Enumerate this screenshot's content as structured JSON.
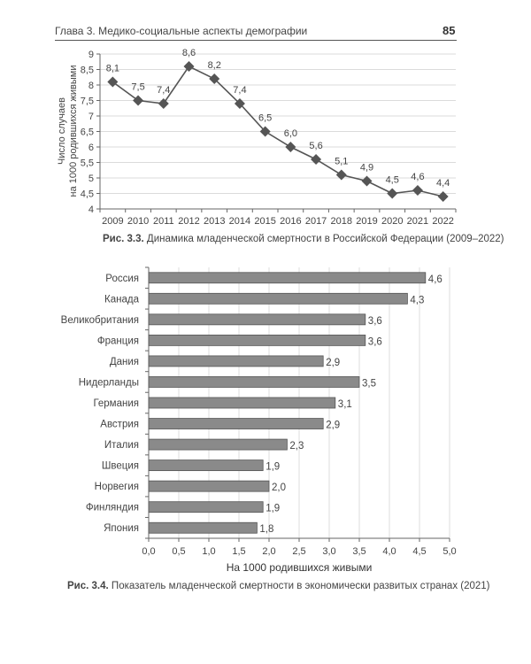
{
  "header": {
    "chapter": "Глава 3. Медико-социальные аспекты демографии",
    "page_number": "85"
  },
  "chart_data": [
    {
      "type": "line",
      "figure_label": "Рис. 3.3.",
      "title": "Динамика младенческой смертности в Российской Федерации (2009–2022)",
      "xlabel": "",
      "ylabel_line1": "Число случаев",
      "ylabel_line2": "на 1000 родившихся живыми",
      "x": [
        "2009",
        "2010",
        "2011",
        "2012",
        "2013",
        "2014",
        "2015",
        "2016",
        "2017",
        "2018",
        "2019",
        "2020",
        "2021",
        "2022"
      ],
      "values": [
        8.1,
        7.5,
        7.4,
        8.6,
        8.2,
        7.4,
        6.5,
        6.0,
        5.6,
        5.1,
        4.9,
        4.5,
        4.6,
        4.4
      ],
      "data_labels": [
        "8,1",
        "7,5",
        "7,4",
        "8,6",
        "8,2",
        "7,4",
        "6,5",
        "6,0",
        "5,6",
        "5,1",
        "4,9",
        "4,5",
        "4,6",
        "4,4"
      ],
      "ylim": [
        4,
        9
      ],
      "yticks": [
        "4",
        "4,5",
        "5",
        "5,5",
        "6",
        "6,5",
        "7",
        "7,5",
        "8",
        "8,5",
        "9"
      ],
      "grid": true,
      "marker": "diamond",
      "color": "#555555"
    },
    {
      "type": "bar",
      "orientation": "horizontal",
      "figure_label": "Рис. 3.4.",
      "title": "Показатель младенческой смертности в экономически развитых странах (2021)",
      "xlabel": "На 1000 родившихся живыми",
      "categories": [
        "Россия",
        "Канада",
        "Великобритания",
        "Франция",
        "Дания",
        "Нидерланды",
        "Германия",
        "Австрия",
        "Италия",
        "Швеция",
        "Норвегия",
        "Финляндия",
        "Япония"
      ],
      "values": [
        4.6,
        4.3,
        3.6,
        3.6,
        2.9,
        3.5,
        3.1,
        2.9,
        2.3,
        1.9,
        2.0,
        1.9,
        1.8
      ],
      "data_labels": [
        "4,6",
        "4,3",
        "3,6",
        "3,6",
        "2,9",
        "3,5",
        "3,1",
        "2,9",
        "2,3",
        "1,9",
        "2,0",
        "1,9",
        "1,8"
      ],
      "xlim": [
        0,
        5
      ],
      "xticks": [
        "0,0",
        "0,5",
        "1,0",
        "1,5",
        "2,0",
        "2,5",
        "3,0",
        "3,5",
        "4,0",
        "4,5",
        "5,0"
      ],
      "grid": true,
      "color": "#8a8a8a"
    }
  ]
}
